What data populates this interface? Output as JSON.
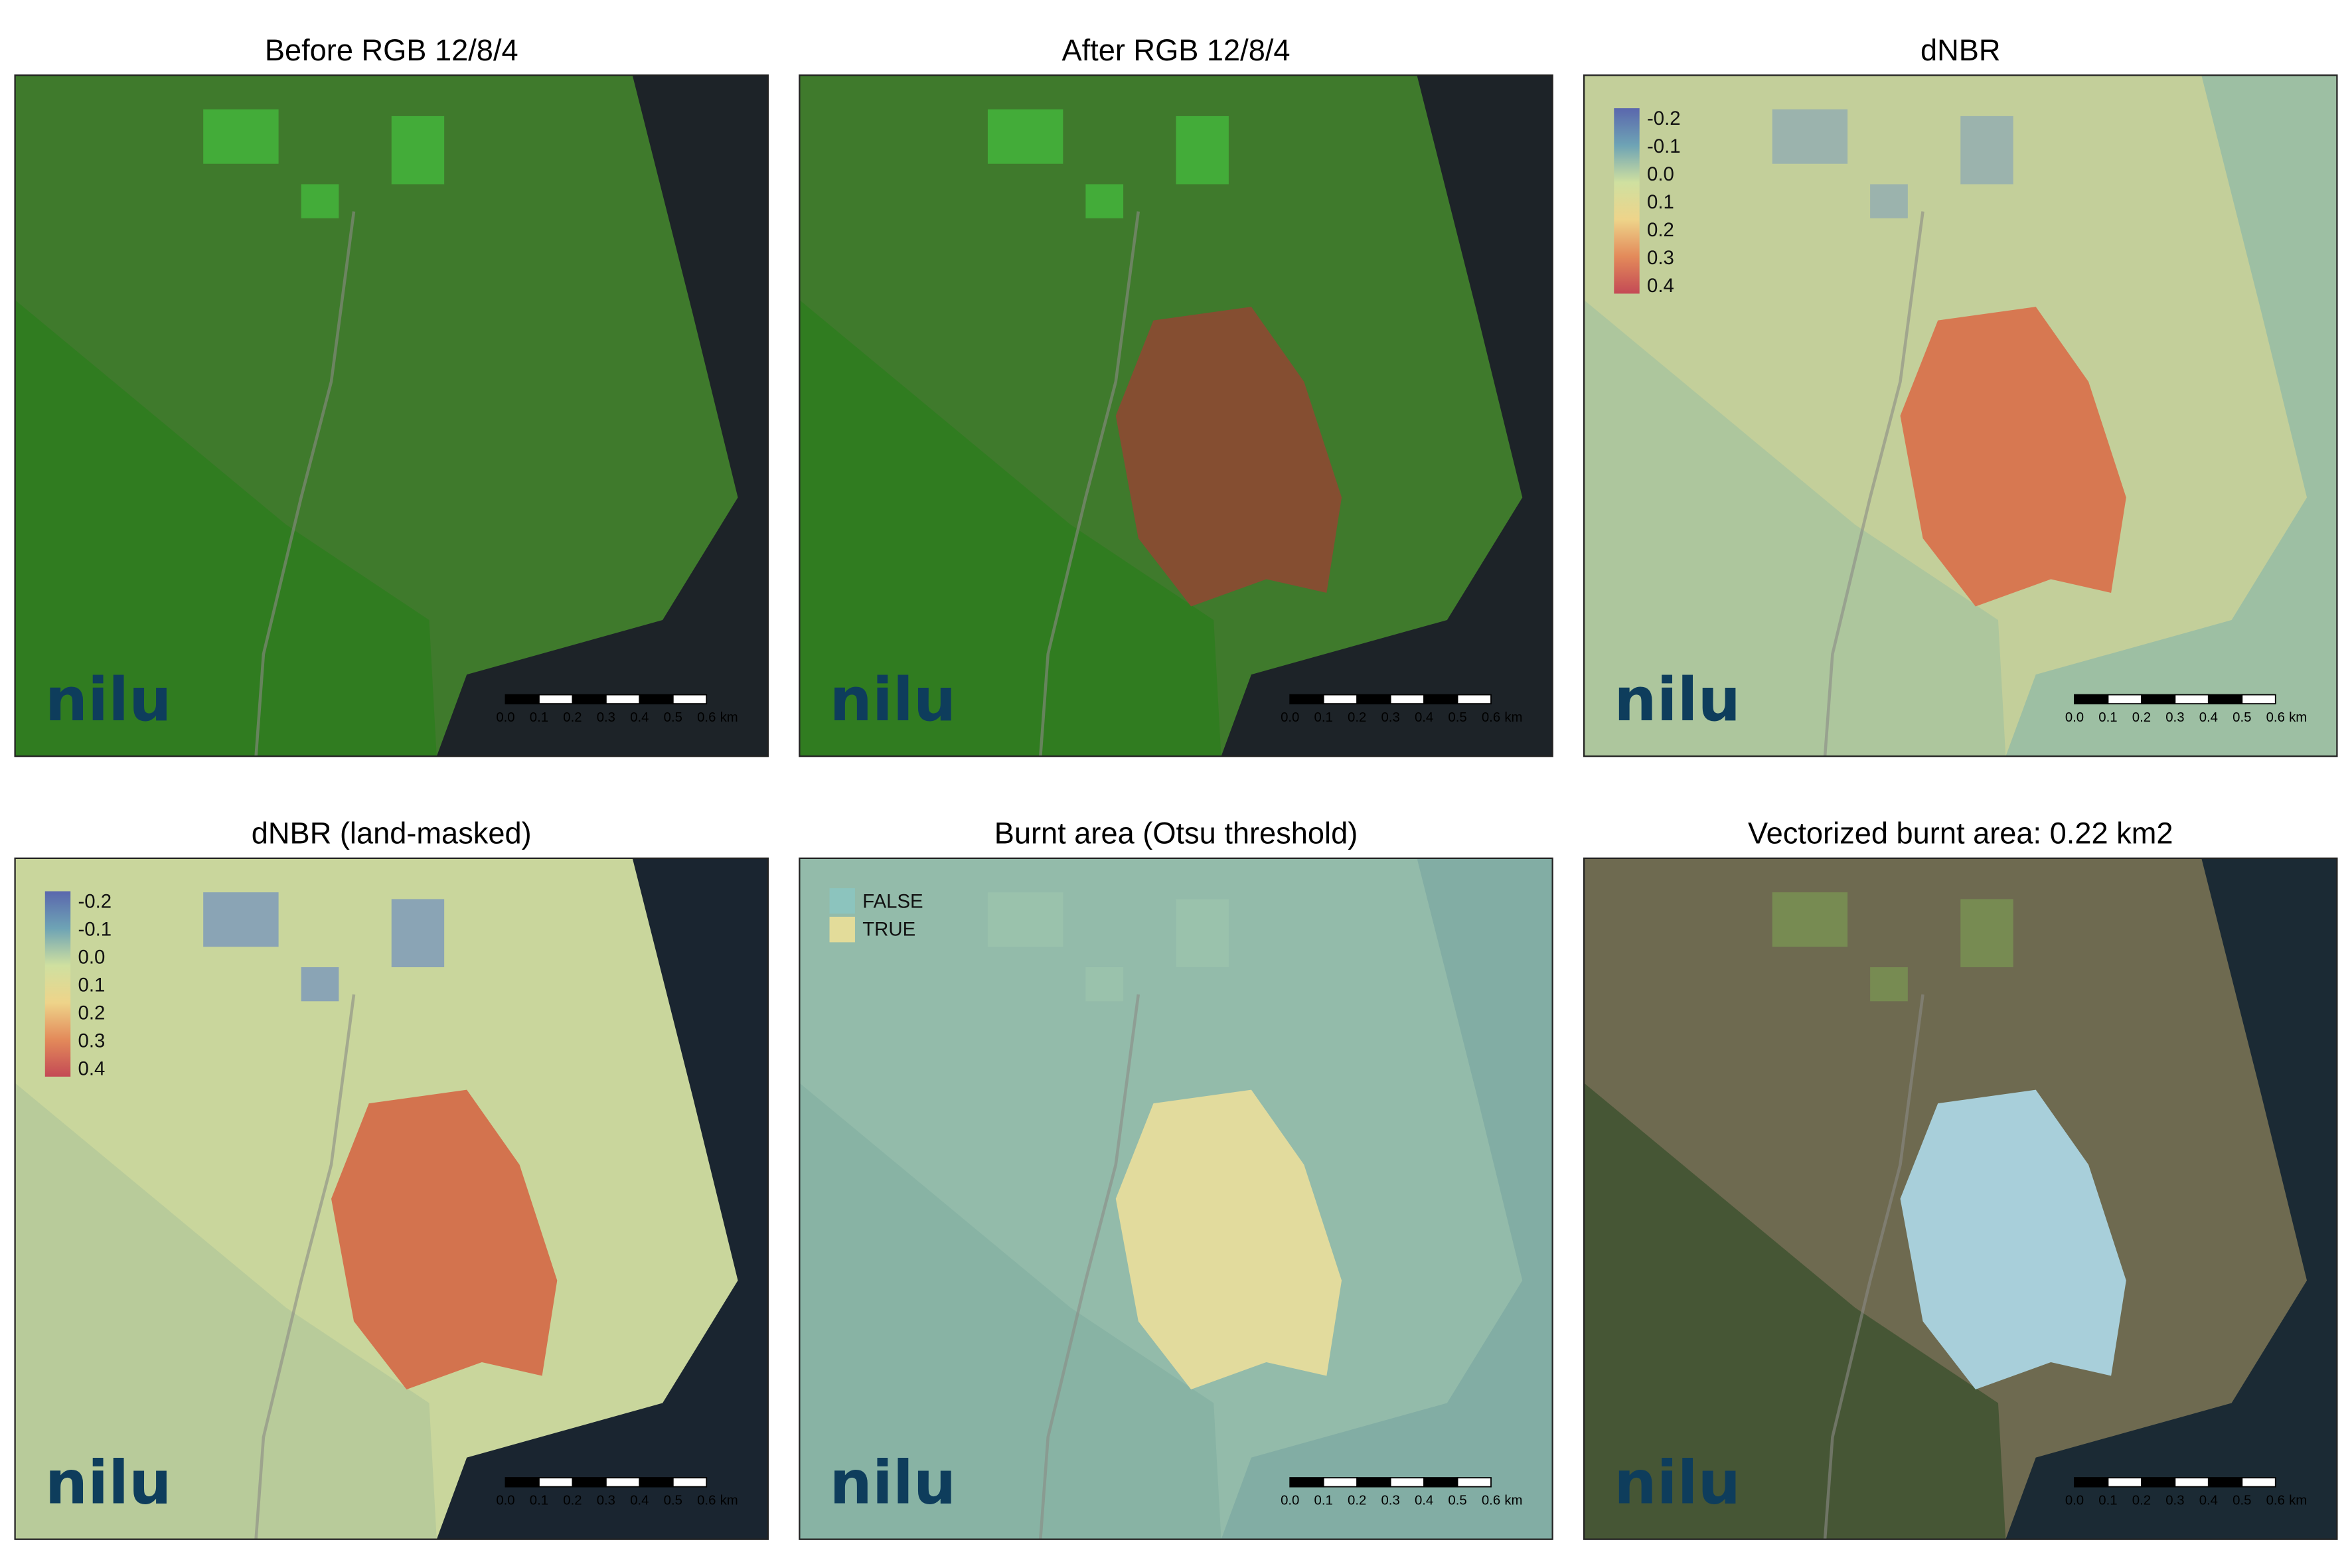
{
  "panels": [
    {
      "title": "Before RGB 12/8/4",
      "logo": "nilu"
    },
    {
      "title": "After RGB 12/8/4",
      "logo": "nilu"
    },
    {
      "title": "dNBR",
      "legend": [
        "-0.2",
        "-0.1",
        "0.0",
        "0.1",
        "0.2",
        "0.3",
        "0.4"
      ],
      "logo": "nilu"
    },
    {
      "title": "dNBR (land-masked)",
      "legend": [
        "-0.2",
        "-0.1",
        "0.0",
        "0.1",
        "0.2",
        "0.3",
        "0.4"
      ],
      "logo": "nilu"
    },
    {
      "title": "Burnt area (Otsu threshold)",
      "legend": [
        "FALSE",
        "TRUE"
      ],
      "logo": "nilu"
    },
    {
      "title": "Vectorized burnt area: 0.22 km2",
      "logo": "nilu"
    }
  ],
  "scale_bar": {
    "ticks": [
      "0.0",
      "0.1",
      "0.2",
      "0.3",
      "0.4",
      "0.5",
      "0.6"
    ],
    "unit": "km"
  }
}
